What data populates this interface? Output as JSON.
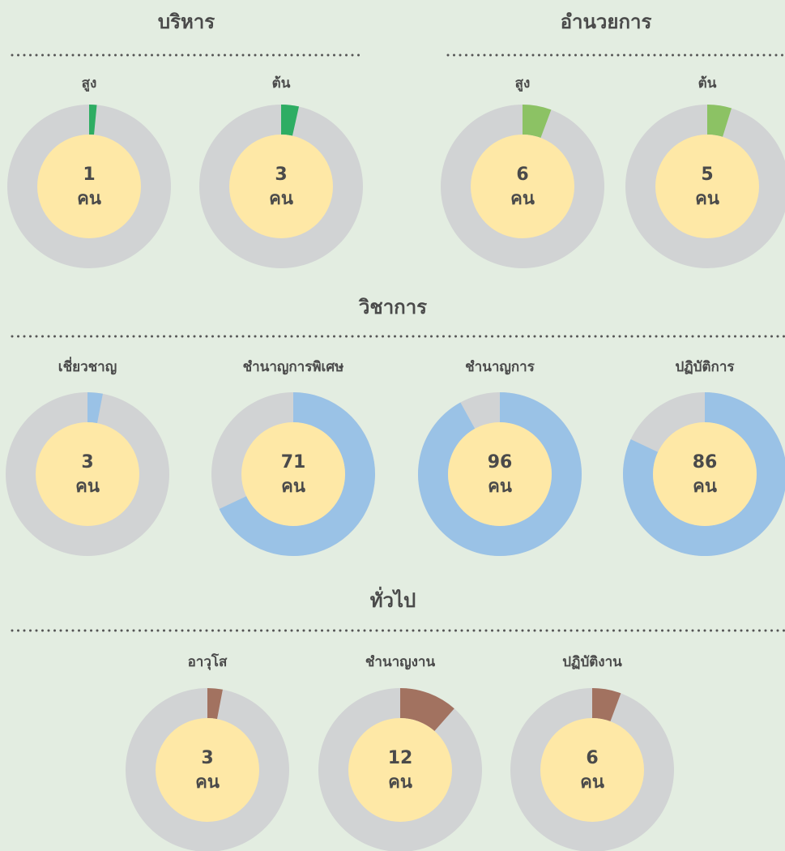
{
  "sections": [
    {
      "title": "บริหาร",
      "chart_data": [
        {
          "type": "donut",
          "title": "สูง",
          "value": 1,
          "unit": "คน",
          "share": 1.5,
          "color": "#2ead63"
        },
        {
          "type": "donut",
          "title": "ต้น",
          "value": 3,
          "unit": "คน",
          "share": 3.5,
          "color": "#2ead63"
        }
      ]
    },
    {
      "title": "อำนวยการ",
      "chart_data": [
        {
          "type": "donut",
          "title": "สูง",
          "value": 6,
          "unit": "คน",
          "share": 5.7,
          "color": "#8cc264"
        },
        {
          "type": "donut",
          "title": "ต้น",
          "value": 5,
          "unit": "คน",
          "share": 4.8,
          "color": "#8cc264"
        }
      ]
    },
    {
      "title": "วิชาการ",
      "chart_data": [
        {
          "type": "donut",
          "title": "เชี่ยวชาญ",
          "value": 3,
          "unit": "คน",
          "share": 3,
          "color": "#9ac2e6"
        },
        {
          "type": "donut",
          "title": "ชำนาญการพิเศษ",
          "value": 71,
          "unit": "คน",
          "share": 68,
          "color": "#9ac2e6"
        },
        {
          "type": "donut",
          "title": "ชำนาญการ",
          "value": 96,
          "unit": "คน",
          "share": 92,
          "color": "#9ac2e6"
        },
        {
          "type": "donut",
          "title": "ปฏิบัติการ",
          "value": 86,
          "unit": "คน",
          "share": 82,
          "color": "#9ac2e6"
        }
      ]
    },
    {
      "title": "ทั่วไป",
      "chart_data": [
        {
          "type": "donut",
          "title": "อาวุโส",
          "value": 3,
          "unit": "คน",
          "share": 3,
          "color": "#a27260"
        },
        {
          "type": "donut",
          "title": "ชำนาญงาน",
          "value": 12,
          "unit": "คน",
          "share": 11.5,
          "color": "#a27260"
        },
        {
          "type": "donut",
          "title": "ปฏิบัติงาน",
          "value": 6,
          "unit": "คน",
          "share": 5.7,
          "color": "#a27260"
        }
      ]
    }
  ]
}
